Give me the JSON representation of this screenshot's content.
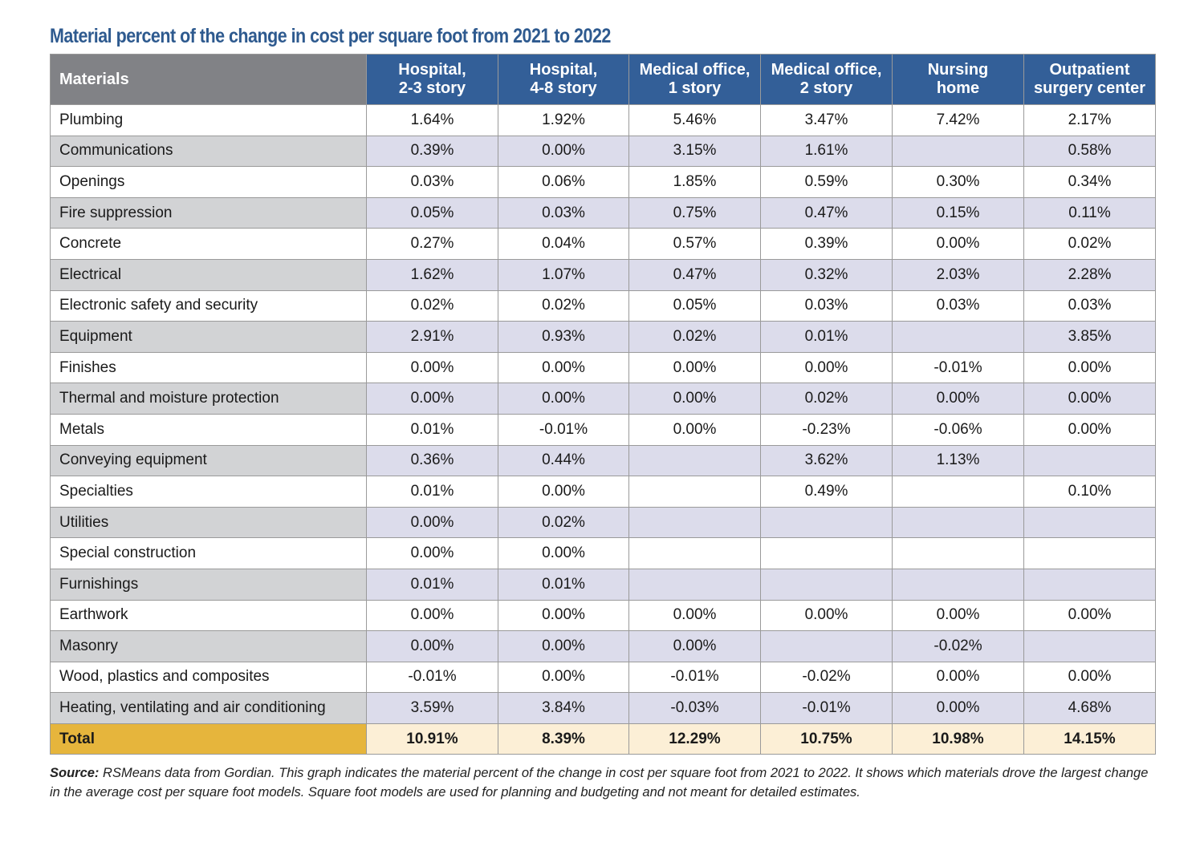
{
  "chart_data": {
    "type": "table",
    "title": "Material percent of the change in cost per square foot from 2021 to 2022",
    "row_header": "Materials",
    "columns": [
      {
        "line1": "Hospital,",
        "line2": "2-3 story"
      },
      {
        "line1": "Hospital,",
        "line2": "4-8 story"
      },
      {
        "line1": "Medical office,",
        "line2": "1 story"
      },
      {
        "line1": "Medical office,",
        "line2": "2 story"
      },
      {
        "line1": "Nursing",
        "line2": "home"
      },
      {
        "line1": "Outpatient",
        "line2": "surgery center"
      }
    ],
    "rows": [
      {
        "material": "Plumbing",
        "values": [
          "1.64%",
          "1.92%",
          "5.46%",
          "3.47%",
          "7.42%",
          "2.17%"
        ]
      },
      {
        "material": "Communications",
        "values": [
          "0.39%",
          "0.00%",
          "3.15%",
          "1.61%",
          "",
          "0.58%"
        ]
      },
      {
        "material": "Openings",
        "values": [
          "0.03%",
          "0.06%",
          "1.85%",
          "0.59%",
          "0.30%",
          "0.34%"
        ]
      },
      {
        "material": "Fire suppression",
        "values": [
          "0.05%",
          "0.03%",
          "0.75%",
          "0.47%",
          "0.15%",
          "0.11%"
        ]
      },
      {
        "material": "Concrete",
        "values": [
          "0.27%",
          "0.04%",
          "0.57%",
          "0.39%",
          "0.00%",
          "0.02%"
        ]
      },
      {
        "material": "Electrical",
        "values": [
          "1.62%",
          "1.07%",
          "0.47%",
          "0.32%",
          "2.03%",
          "2.28%"
        ]
      },
      {
        "material": "Electronic safety and security",
        "values": [
          "0.02%",
          "0.02%",
          "0.05%",
          "0.03%",
          "0.03%",
          "0.03%"
        ]
      },
      {
        "material": "Equipment",
        "values": [
          "2.91%",
          "0.93%",
          "0.02%",
          "0.01%",
          "",
          "3.85%"
        ]
      },
      {
        "material": "Finishes",
        "values": [
          "0.00%",
          "0.00%",
          "0.00%",
          "0.00%",
          "-0.01%",
          "0.00%"
        ]
      },
      {
        "material": "Thermal and moisture protection",
        "values": [
          "0.00%",
          "0.00%",
          "0.00%",
          "0.02%",
          "0.00%",
          "0.00%"
        ]
      },
      {
        "material": "Metals",
        "values": [
          "0.01%",
          "-0.01%",
          "0.00%",
          "-0.23%",
          "-0.06%",
          "0.00%"
        ]
      },
      {
        "material": "Conveying equipment",
        "values": [
          "0.36%",
          "0.44%",
          "",
          "3.62%",
          "1.13%",
          ""
        ]
      },
      {
        "material": "Specialties",
        "values": [
          "0.01%",
          "0.00%",
          "",
          "0.49%",
          "",
          "0.10%"
        ]
      },
      {
        "material": "Utilities",
        "values": [
          "0.00%",
          "0.02%",
          "",
          "",
          "",
          ""
        ]
      },
      {
        "material": "Special construction",
        "values": [
          "0.00%",
          "0.00%",
          "",
          "",
          "",
          ""
        ]
      },
      {
        "material": "Furnishings",
        "values": [
          "0.01%",
          "0.01%",
          "",
          "",
          "",
          ""
        ]
      },
      {
        "material": "Earthwork",
        "values": [
          "0.00%",
          "0.00%",
          "0.00%",
          "0.00%",
          "0.00%",
          "0.00%"
        ]
      },
      {
        "material": "Masonry",
        "values": [
          "0.00%",
          "0.00%",
          "0.00%",
          "",
          "-0.02%",
          ""
        ]
      },
      {
        "material": "Wood, plastics and composites",
        "values": [
          "-0.01%",
          "0.00%",
          "-0.01%",
          "-0.02%",
          "0.00%",
          "0.00%"
        ]
      },
      {
        "material": "Heating, ventilating and air conditioning",
        "values": [
          "3.59%",
          "3.84%",
          "-0.03%",
          "-0.01%",
          "0.00%",
          "4.68%"
        ]
      }
    ],
    "total": {
      "label": "Total",
      "values": [
        "10.91%",
        "8.39%",
        "12.29%",
        "10.75%",
        "10.98%",
        "14.15%"
      ]
    }
  },
  "source": {
    "label": "Source:",
    "text": "RSMeans data from Gordian. This graph indicates the material percent of the change in cost per square foot from 2021 to 2022. It shows which materials drove the largest change in the average cost per square foot models. Square foot models are used for planning and budgeting and not meant for detailed estimates."
  },
  "colors": {
    "title": "#2e5a8f",
    "header_blue": "#335f98",
    "header_gray": "#818286",
    "stripe_material": "#d2d3d5",
    "stripe_values": "#dcdceb",
    "total_label": "#e6b53c",
    "total_values": "#fcefd6"
  }
}
